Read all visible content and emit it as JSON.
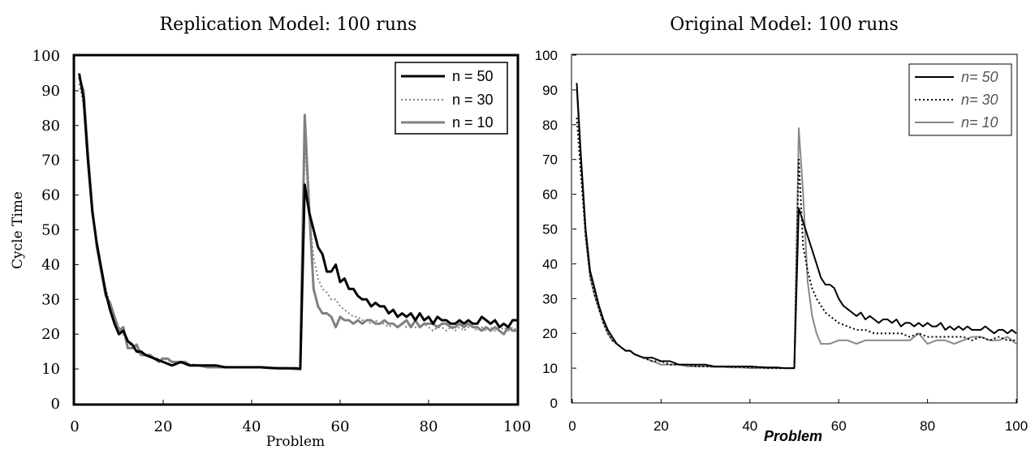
{
  "chart_data": [
    {
      "type": "line",
      "title": "Replication Model: 100 runs",
      "xlabel": "Problem",
      "ylabel": "Cycle Time",
      "xlim": [
        0,
        100
      ],
      "ylim": [
        0,
        100
      ],
      "xticks": [
        0,
        20,
        40,
        60,
        80,
        100
      ],
      "yticks": [
        0,
        10,
        20,
        30,
        40,
        50,
        60,
        70,
        80,
        90,
        100
      ],
      "grid": false,
      "legend_position": "top-right",
      "series": [
        {
          "name": "n = 50",
          "color": "#000000",
          "style": "solid",
          "x": [
            1,
            2,
            3,
            4,
            5,
            6,
            7,
            8,
            9,
            10,
            11,
            12,
            13,
            14,
            15,
            16,
            18,
            20,
            22,
            24,
            26,
            28,
            30,
            32,
            34,
            36,
            38,
            40,
            42,
            44,
            46,
            48,
            50,
            51,
            52,
            53,
            54,
            55,
            56,
            57,
            58,
            59,
            60,
            61,
            62,
            63,
            64,
            65,
            66,
            67,
            68,
            69,
            70,
            71,
            72,
            73,
            74,
            75,
            76,
            77,
            78,
            79,
            80,
            81,
            82,
            83,
            84,
            85,
            86,
            87,
            88,
            89,
            90,
            91,
            92,
            93,
            94,
            95,
            96,
            97,
            98,
            99,
            100
          ],
          "y": [
            95,
            88,
            70,
            55,
            46,
            39,
            32,
            27,
            23,
            20,
            21,
            18,
            17,
            15,
            15,
            14,
            13,
            12,
            11,
            12,
            11,
            11,
            11,
            11,
            10.5,
            10.5,
            10.5,
            10.5,
            10.5,
            10.3,
            10.2,
            10.2,
            10.2,
            10,
            63,
            55,
            50,
            45,
            43,
            38,
            38,
            40,
            35,
            36,
            33,
            33,
            31,
            30,
            30,
            28,
            29,
            28,
            28,
            26,
            27,
            25,
            26,
            25,
            26,
            24,
            26,
            24,
            25,
            23,
            25,
            24,
            24,
            23,
            23,
            24,
            23,
            24,
            23,
            23,
            25,
            24,
            23,
            24,
            22,
            23,
            22,
            24,
            24
          ]
        },
        {
          "name": "n = 30",
          "color": "#808080",
          "style": "dotted",
          "x": [
            1,
            2,
            3,
            4,
            5,
            6,
            7,
            8,
            9,
            10,
            11,
            12,
            13,
            14,
            15,
            16,
            18,
            20,
            22,
            24,
            26,
            28,
            30,
            32,
            34,
            36,
            38,
            40,
            42,
            44,
            46,
            48,
            50,
            51,
            52,
            53,
            54,
            55,
            56,
            57,
            58,
            59,
            60,
            61,
            62,
            63,
            64,
            65,
            66,
            67,
            68,
            69,
            70,
            71,
            72,
            73,
            74,
            75,
            76,
            77,
            78,
            79,
            80,
            81,
            82,
            83,
            84,
            85,
            86,
            87,
            88,
            89,
            90,
            91,
            92,
            93,
            94,
            95,
            96,
            97,
            98,
            99,
            100
          ],
          "y": [
            92,
            86,
            70,
            56,
            46,
            39,
            33,
            29,
            25,
            22,
            20,
            18,
            16,
            15,
            14,
            14,
            13,
            13,
            12,
            12,
            11.5,
            11,
            11,
            10.5,
            10.5,
            10.5,
            10.5,
            10.5,
            10.5,
            10.3,
            10.2,
            10.2,
            10.2,
            10,
            75,
            55,
            42,
            36,
            33,
            32,
            30,
            30,
            28,
            27,
            26,
            25,
            25,
            24,
            24,
            23,
            24,
            23,
            23,
            22,
            23,
            22,
            23,
            22,
            23,
            22,
            22,
            23,
            22,
            21,
            22,
            22,
            21,
            22,
            21,
            22,
            21,
            22,
            22,
            21,
            22,
            21,
            22,
            21,
            21,
            22,
            21,
            22,
            21
          ]
        },
        {
          "name": "n = 10",
          "color": "#808080",
          "style": "solid",
          "x": [
            1,
            2,
            3,
            4,
            5,
            6,
            7,
            8,
            9,
            10,
            11,
            12,
            13,
            14,
            15,
            16,
            17,
            18,
            19,
            20,
            21,
            22,
            23,
            24,
            25,
            26,
            28,
            30,
            32,
            34,
            36,
            38,
            40,
            42,
            44,
            46,
            48,
            50,
            51,
            52,
            53,
            54,
            55,
            56,
            57,
            58,
            59,
            60,
            61,
            62,
            63,
            64,
            65,
            66,
            67,
            68,
            69,
            70,
            71,
            72,
            73,
            74,
            75,
            76,
            77,
            78,
            79,
            80,
            81,
            82,
            83,
            84,
            85,
            86,
            87,
            88,
            89,
            90,
            91,
            92,
            93,
            94,
            95,
            96,
            97,
            98,
            99,
            100
          ],
          "y": [
            94,
            90,
            72,
            56,
            45,
            38,
            31,
            29,
            25,
            21,
            22,
            16,
            16,
            17,
            14,
            14,
            14,
            13,
            12,
            13,
            13,
            12,
            12,
            12,
            12,
            11,
            11,
            10.5,
            10.5,
            10.5,
            10.5,
            10.5,
            10.5,
            10.5,
            10.3,
            10.2,
            10.2,
            10,
            10,
            83,
            56,
            33,
            28,
            26,
            26,
            25,
            22,
            25,
            24,
            24,
            23,
            24,
            23,
            24,
            24,
            23,
            23,
            24,
            23,
            23,
            22,
            23,
            24,
            22,
            24,
            22,
            23,
            23,
            23,
            22,
            23,
            23,
            22,
            22,
            23,
            22,
            23,
            22,
            22,
            21,
            22,
            21,
            22,
            21,
            20,
            22,
            21,
            21
          ]
        }
      ]
    },
    {
      "type": "line",
      "title": "Original Model: 100 runs",
      "xlabel": "Problem",
      "ylabel": "",
      "xlim": [
        0,
        100
      ],
      "ylim": [
        0,
        100
      ],
      "xticks": [
        0,
        20,
        40,
        60,
        80,
        100
      ],
      "yticks": [
        0,
        10,
        20,
        30,
        40,
        50,
        60,
        70,
        80,
        90,
        100
      ],
      "grid": false,
      "legend_position": "top-right",
      "series": [
        {
          "name": "n= 50",
          "color": "#000000",
          "style": "solid",
          "x": [
            1,
            2,
            3,
            4,
            5,
            6,
            7,
            8,
            9,
            10,
            11,
            12,
            13,
            14,
            16,
            18,
            20,
            22,
            24,
            26,
            28,
            30,
            32,
            34,
            36,
            38,
            40,
            42,
            44,
            46,
            48,
            49,
            50,
            51,
            52,
            53,
            54,
            55,
            56,
            57,
            58,
            59,
            60,
            61,
            62,
            63,
            64,
            65,
            66,
            67,
            68,
            69,
            70,
            71,
            72,
            73,
            74,
            75,
            76,
            77,
            78,
            79,
            80,
            81,
            82,
            83,
            84,
            85,
            86,
            87,
            88,
            89,
            90,
            91,
            92,
            93,
            94,
            95,
            96,
            97,
            98,
            99,
            100
          ],
          "y": [
            92,
            70,
            50,
            38,
            33,
            28,
            24,
            21,
            19,
            17,
            16,
            15,
            15,
            14,
            13,
            13,
            12,
            12,
            11,
            11,
            11,
            11,
            10.5,
            10.5,
            10.5,
            10.5,
            10.5,
            10.3,
            10.2,
            10.2,
            10,
            10,
            10,
            56,
            52,
            48,
            44,
            40,
            36,
            34,
            34,
            33,
            30,
            28,
            27,
            26,
            25,
            26,
            24,
            25,
            24,
            23,
            24,
            24,
            23,
            24,
            22,
            23,
            23,
            22,
            23,
            22,
            23,
            22,
            22,
            23,
            21,
            22,
            21,
            22,
            21,
            22,
            21,
            21,
            21,
            22,
            21,
            20,
            21,
            21,
            20,
            21,
            20
          ]
        },
        {
          "name": "n= 30",
          "color": "#000000",
          "style": "dotted",
          "x": [
            1,
            2,
            3,
            4,
            5,
            6,
            7,
            8,
            9,
            10,
            11,
            12,
            13,
            14,
            16,
            18,
            20,
            22,
            24,
            26,
            28,
            30,
            32,
            34,
            36,
            38,
            40,
            42,
            44,
            46,
            48,
            49,
            50,
            51,
            52,
            53,
            54,
            55,
            56,
            57,
            58,
            59,
            60,
            62,
            64,
            66,
            68,
            70,
            72,
            74,
            76,
            78,
            80,
            82,
            84,
            86,
            88,
            90,
            92,
            94,
            96,
            98,
            100
          ],
          "y": [
            82,
            65,
            48,
            37,
            31,
            27,
            23,
            20,
            18,
            17,
            16,
            15,
            15,
            14,
            13,
            12,
            12,
            11,
            11,
            11,
            10.5,
            10.5,
            10.5,
            10.5,
            10.3,
            10.3,
            10.2,
            10.2,
            10,
            10,
            10,
            10,
            10,
            70,
            45,
            38,
            33,
            30,
            28,
            26,
            25,
            24,
            23,
            22,
            21,
            21,
            20,
            20,
            20,
            20,
            19,
            20,
            19,
            19,
            19,
            19,
            19,
            18,
            19,
            18,
            19,
            18,
            18
          ]
        },
        {
          "name": "n= 10",
          "color": "#888888",
          "style": "solid",
          "x": [
            1,
            2,
            3,
            4,
            5,
            6,
            7,
            8,
            9,
            10,
            11,
            12,
            13,
            14,
            16,
            18,
            20,
            22,
            24,
            26,
            28,
            30,
            32,
            34,
            36,
            38,
            40,
            42,
            44,
            46,
            48,
            49,
            50,
            51,
            52,
            53,
            54,
            55,
            56,
            57,
            58,
            60,
            62,
            64,
            66,
            68,
            70,
            72,
            74,
            76,
            78,
            80,
            82,
            84,
            86,
            88,
            90,
            92,
            94,
            96,
            98,
            100
          ],
          "y": [
            90,
            68,
            48,
            36,
            31,
            27,
            23,
            20,
            18,
            17,
            16,
            15,
            15,
            14,
            13,
            12,
            11,
            11,
            11,
            10.5,
            10.5,
            10.5,
            10.3,
            10.3,
            10.2,
            10.2,
            10,
            10,
            10,
            10,
            10,
            10,
            10,
            79,
            60,
            35,
            25,
            20,
            17,
            17,
            17,
            18,
            18,
            17,
            18,
            18,
            18,
            18,
            18,
            18,
            20,
            17,
            18,
            18,
            17,
            18,
            19,
            19,
            18,
            18,
            19,
            17
          ]
        }
      ]
    }
  ]
}
